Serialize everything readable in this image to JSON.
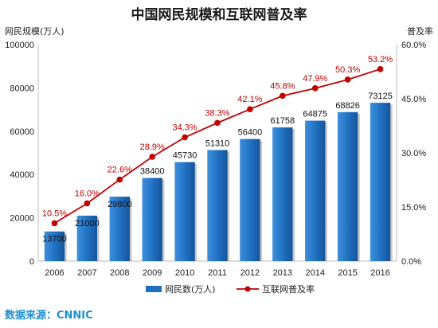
{
  "chart_data": {
    "type": "bar",
    "title": "中国网民规模和互联网普及率",
    "categories": [
      "2006",
      "2007",
      "2008",
      "2009",
      "2010",
      "2011",
      "2012",
      "2013",
      "2014",
      "2015",
      "2016"
    ],
    "series": [
      {
        "name": "网民数(万人)",
        "type": "bar",
        "axis": "left",
        "values": [
          13700,
          21000,
          29800,
          38400,
          45730,
          51310,
          56400,
          61758,
          64875,
          68826,
          73125
        ],
        "labels": [
          "13700",
          "21000",
          "29800",
          "38400",
          "45730",
          "51310",
          "56400",
          "61758",
          "64875",
          "68826",
          "73125"
        ],
        "color": "#1f6fc0"
      },
      {
        "name": "互联网普及率",
        "type": "line",
        "axis": "right",
        "values": [
          10.5,
          16.0,
          22.6,
          28.9,
          34.3,
          38.3,
          42.1,
          45.8,
          47.9,
          50.3,
          53.2
        ],
        "labels": [
          "10.5%",
          "16.0%",
          "22.6%",
          "28.9%",
          "34.3%",
          "38.3%",
          "42.1%",
          "45.8%",
          "47.9%",
          "50.3%",
          "53.2%"
        ],
        "color": "#c00000"
      }
    ],
    "ylabel_left": "网民规模(万人)",
    "ylabel_right": "普及率",
    "ylim_left": [
      0,
      100000
    ],
    "ylim_right": [
      0,
      60
    ],
    "yticks_left": [
      "0",
      "20000",
      "40000",
      "60000",
      "80000",
      "100000"
    ],
    "yticks_right": [
      "0.0%",
      "15.0%",
      "30.0%",
      "45.0%",
      "60.0%"
    ],
    "grid": false,
    "legend": "bottom"
  },
  "source": "数据来源：CNNIC"
}
